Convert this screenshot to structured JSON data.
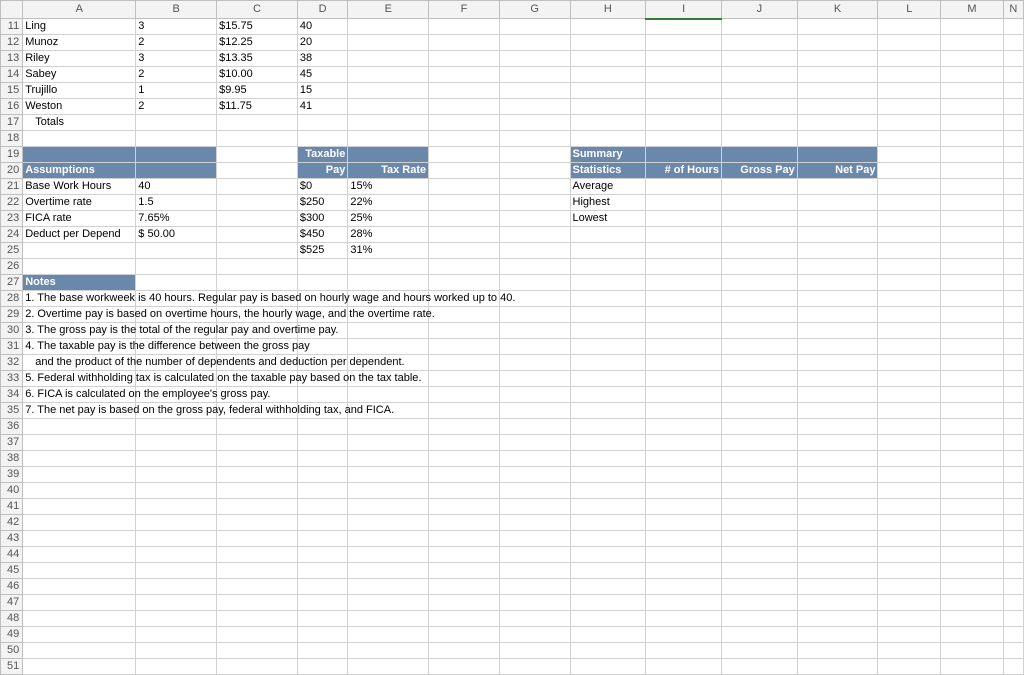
{
  "columns": [
    "A",
    "B",
    "C",
    "D",
    "E",
    "F",
    "G",
    "H",
    "I",
    "J",
    "K",
    "L",
    "M",
    "N"
  ],
  "activeColumn": "I",
  "startRow": 11,
  "endRow": 51,
  "employees": [
    {
      "name": "Ling",
      "depend": "3",
      "rate": "$15.75",
      "hours": "40"
    },
    {
      "name": "Munoz",
      "depend": "2",
      "rate": "$12.25",
      "hours": "20"
    },
    {
      "name": "Riley",
      "depend": "3",
      "rate": "$13.35",
      "hours": "38"
    },
    {
      "name": "Sabey",
      "depend": "2",
      "rate": "$10.00",
      "hours": "45"
    },
    {
      "name": "Trujillo",
      "depend": "1",
      "rate": "$9.95",
      "hours": "15"
    },
    {
      "name": "Weston",
      "depend": "2",
      "rate": "$11.75",
      "hours": "41"
    }
  ],
  "totalsLabel": "Totals",
  "assumptionsHeader": "Assumptions",
  "taxableHeader1": "Taxable",
  "taxableHeader2": "Pay",
  "taxRateHeader": "Tax Rate",
  "assumptions": [
    {
      "label": "Base Work Hours",
      "value": "40",
      "pay": "$0",
      "rate": "15%"
    },
    {
      "label": "Overtime rate",
      "value": "1.5",
      "pay": "$250",
      "rate": "22%"
    },
    {
      "label": "FICA rate",
      "value": "7.65%",
      "pay": "$300",
      "rate": "25%"
    },
    {
      "label": "Deduct per Depend",
      "value": "$     50.00",
      "pay": "$450",
      "rate": "28%"
    }
  ],
  "extraTaxRow": {
    "pay": "$525",
    "rate": "31%"
  },
  "summaryHeader1": "Summary",
  "summaryHeader2": "Statistics",
  "summaryCols": {
    "hours": "# of Hours",
    "gross": "Gross Pay",
    "net": "Net Pay"
  },
  "summaryRows": [
    "Average",
    "Highest",
    "Lowest"
  ],
  "notesHeader": "Notes",
  "notes": [
    "1. The base workweek is 40 hours. Regular pay is based on hourly wage and hours worked up to 40.",
    "2. Overtime pay is based on overtime hours, the hourly wage, and the overtime rate.",
    "3. The gross pay is the total of the regular pay and overtime pay.",
    "4. The taxable pay is the difference between the gross pay",
    "    and the product of the number of dependents and deduction per dependent.",
    "5. Federal withholding tax is calculated on the taxable pay based on the tax table.",
    "6. FICA is calculated on the employee's gross pay.",
    "7. The net pay is based on the gross pay, federal withholding tax, and FICA."
  ],
  "colors": {
    "headerBlue": "#6a87ac",
    "gridBorder": "#d0d0d0",
    "headerBg": "#f3f3f3"
  }
}
